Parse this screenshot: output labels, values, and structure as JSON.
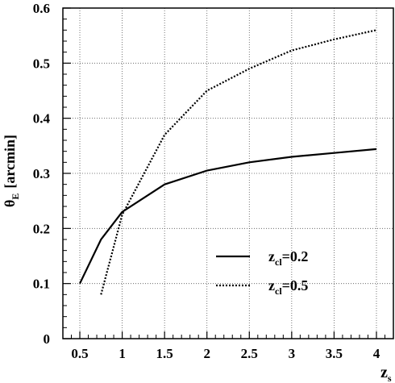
{
  "chart_data": {
    "type": "line",
    "xlabel": {
      "main": "z",
      "sub": "s"
    },
    "ylabel": {
      "main": "θ",
      "sub": "E",
      "unit": "[arcmin]"
    },
    "xlim": [
      0.3,
      4.2
    ],
    "ylim": [
      0,
      0.6
    ],
    "xticks": [
      "0.5",
      "1",
      "1.5",
      "2",
      "2.5",
      "3",
      "3.5",
      "4"
    ],
    "xtick_values": [
      0.5,
      1,
      1.5,
      2,
      2.5,
      3,
      3.5,
      4
    ],
    "yticks": [
      "0",
      "0.1",
      "0.2",
      "0.3",
      "0.4",
      "0.5",
      "0.6"
    ],
    "ytick_values": [
      0,
      0.1,
      0.2,
      0.3,
      0.4,
      0.5,
      0.6
    ],
    "grid": true,
    "legend_position": "bottom-right",
    "series": [
      {
        "name": "z_cl=0.2",
        "label_main": "z",
        "label_sub": "cl",
        "label_value": "=0.2",
        "style": "solid",
        "color": "#000000",
        "x": [
          0.5,
          0.75,
          1.0,
          1.5,
          2.0,
          2.5,
          3.0,
          3.5,
          4.0
        ],
        "y": [
          0.1,
          0.18,
          0.23,
          0.28,
          0.305,
          0.32,
          0.33,
          0.337,
          0.344
        ]
      },
      {
        "name": "z_cl=0.5",
        "label_main": "z",
        "label_sub": "cl",
        "label_value": "=0.5",
        "style": "dotted",
        "color": "#000000",
        "x": [
          0.75,
          1.0,
          1.5,
          2.0,
          2.5,
          3.0,
          3.5,
          4.0
        ],
        "y": [
          0.08,
          0.225,
          0.37,
          0.45,
          0.49,
          0.523,
          0.543,
          0.56
        ]
      }
    ]
  }
}
